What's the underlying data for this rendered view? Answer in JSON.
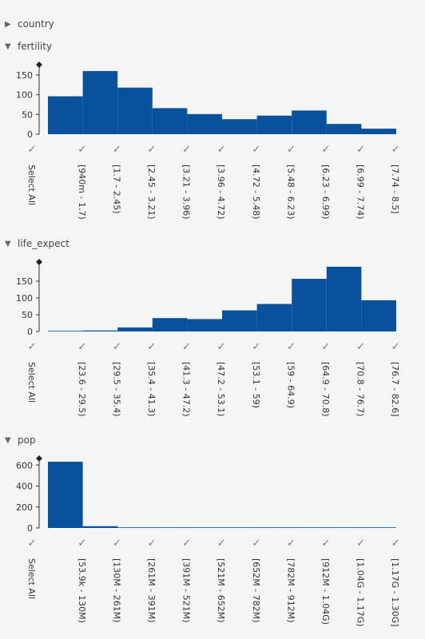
{
  "sections": [
    {
      "id": "country",
      "label": "country",
      "expanded": false
    },
    {
      "id": "fertility",
      "label": "fertility",
      "expanded": true
    },
    {
      "id": "life_expect",
      "label": "life_expect",
      "expanded": true
    },
    {
      "id": "pop",
      "label": "pop",
      "expanded": true
    }
  ],
  "icons": {
    "collapsed": "triangle-right-icon",
    "expanded": "triangle-down-icon",
    "check": "check-icon",
    "handle": "diamond-icon"
  },
  "select_all_label": "Select All",
  "colors": {
    "bar": "#08519c",
    "axis": "#333333",
    "check": "#777777"
  },
  "chart_data": [
    {
      "type": "bar",
      "title": "fertility",
      "categories": [
        "[940m - 1.7)",
        "[1.7 - 2.45)",
        "[2.45 - 3.21)",
        "[3.21 - 3.96)",
        "[3.96 - 4.72)",
        "[4.72 - 5.48)",
        "[5.48 - 6.23)",
        "[6.23 - 6.99)",
        "[6.99 - 7.74)",
        "[7.74 - 8.5]"
      ],
      "values": [
        96,
        160,
        118,
        66,
        51,
        38,
        47,
        60,
        26,
        14
      ],
      "yticks": [
        0,
        50,
        100,
        150
      ],
      "ylim": [
        0,
        170
      ]
    },
    {
      "type": "bar",
      "title": "life_expect",
      "categories": [
        "[23.6 - 29.5)",
        "[29.5 - 35.4)",
        "[35.4 - 41.3)",
        "[41.3 - 47.2)",
        "[47.2 - 53.1)",
        "[53.1 - 59)",
        "[59 - 64.9)",
        "[64.9 - 70.8)",
        "[70.8 - 76.7)",
        "[76.7 - 82.6]"
      ],
      "values": [
        1,
        3,
        12,
        40,
        37,
        63,
        82,
        157,
        193,
        93
      ],
      "yticks": [
        0,
        50,
        100,
        150
      ],
      "ylim": [
        0,
        200
      ]
    },
    {
      "type": "bar",
      "title": "pop",
      "categories": [
        "[53.9k - 130M)",
        "[130M - 261M)",
        "[261M - 391M)",
        "[391M - 521M)",
        "[521M - 652M)",
        "[652M - 782M)",
        "[782M - 912M)",
        "[912M - 1.04G)",
        "[1.04G - 1.17G)",
        "[1.17G - 1.30G]"
      ],
      "values": [
        632,
        17,
        3,
        2,
        2,
        3,
        2,
        4,
        3,
        3
      ],
      "yticks": [
        0,
        200,
        400,
        600
      ],
      "ylim": [
        0,
        640
      ]
    }
  ]
}
